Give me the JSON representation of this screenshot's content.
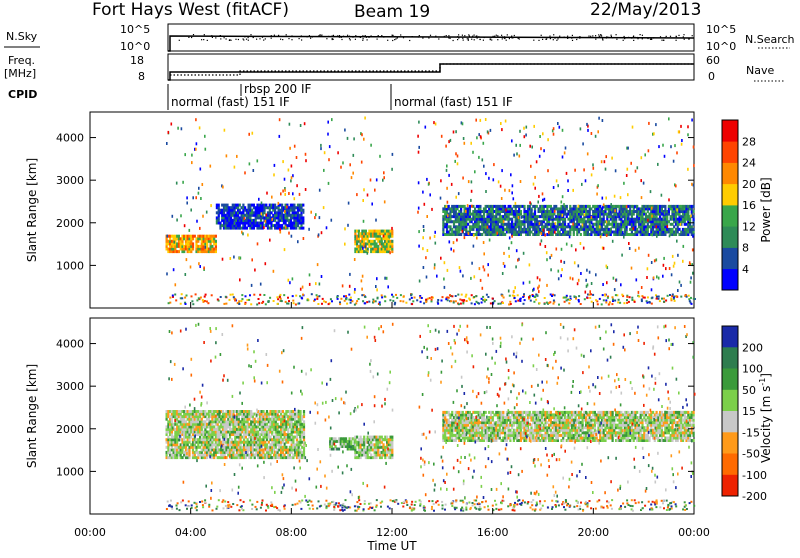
{
  "header": {
    "station": "Fort Hays West (fitACF)",
    "beam": "Beam 19",
    "date": "22/May/2013"
  },
  "strips": {
    "nsky_label": "N.Sky",
    "nsky_ticks": [
      "10^5",
      "10^0"
    ],
    "nsearch_label": "N.Search",
    "nsearch_ticks": [
      "10^5",
      "10^0"
    ],
    "freq_label": "Freq.",
    "freq_unit": "[MHz]",
    "freq_ticks": [
      "18",
      "8"
    ],
    "nave_label": "Nave",
    "nave_ticks": [
      "60",
      "0"
    ],
    "cpid_label": "CPID",
    "cpid_entries": [
      {
        "label": "normal (fast) 151 IF",
        "start_hour": 3.0
      },
      {
        "label": "rbsp 200 IF",
        "start_hour": 6.0
      },
      {
        "label": "normal (fast) 151 IF",
        "start_hour": 12.0
      }
    ]
  },
  "chart_data": [
    {
      "type": "heatmap",
      "name": "power",
      "ylabel": "Slant Range [km]",
      "yticks": [
        "1000",
        "2000",
        "3000",
        "4000"
      ],
      "ylim": [
        0,
        4600
      ],
      "xlim": [
        0,
        24
      ],
      "colorbar_label": "Power [dB]",
      "colorbar_ticks": [
        "4",
        "8",
        "12",
        "16",
        "20",
        "24",
        "28"
      ],
      "colors": [
        "#0000ff",
        "#1a4aa0",
        "#2e8b57",
        "#39a64a",
        "#ffcc00",
        "#ff8800",
        "#ff4400",
        "#ee0000"
      ],
      "bands": [
        {
          "t0": 3.0,
          "t1": 5.0,
          "r0": 1300,
          "r1": 1700,
          "level": 5
        },
        {
          "t0": 5.0,
          "t1": 8.5,
          "r0": 1850,
          "r1": 2400,
          "level": 1
        },
        {
          "t0": 10.5,
          "t1": 12.0,
          "r0": 1300,
          "r1": 1800,
          "level": 4
        },
        {
          "t0": 14.0,
          "t1": 24.0,
          "r0": 1700,
          "r1": 2400,
          "level": 2
        }
      ]
    },
    {
      "type": "heatmap",
      "name": "velocity",
      "ylabel": "Slant Range [km]",
      "yticks": [
        "1000",
        "2000",
        "3000",
        "4000"
      ],
      "ylim": [
        0,
        4600
      ],
      "xlim": [
        0,
        24
      ],
      "colorbar_label": "Velocity [m s",
      "colorbar_label_sup": "-1",
      "colorbar_ticks": [
        "200",
        "100",
        "50",
        "15",
        "-15",
        "-50",
        "-100",
        "-200"
      ],
      "colors": [
        "#1a2aa8",
        "#2e7d4f",
        "#3a9a3a",
        "#7cd04a",
        "#c8c8c8",
        "#ff9a1a",
        "#ff6a00",
        "#ee2200"
      ],
      "bands": [
        {
          "t0": 3.0,
          "t1": 8.5,
          "r0": 1300,
          "r1": 2400,
          "level": 4
        },
        {
          "t0": 9.5,
          "t1": 10.5,
          "r0": 1500,
          "r1": 1800,
          "level": 3
        },
        {
          "t0": 10.5,
          "t1": 12.0,
          "r0": 1300,
          "r1": 1800,
          "level": 4
        },
        {
          "t0": 14.0,
          "t1": 24.0,
          "r0": 1700,
          "r1": 2400,
          "level": 4
        }
      ]
    }
  ],
  "xaxis": {
    "ticks": [
      "00:00",
      "04:00",
      "08:00",
      "12:00",
      "16:00",
      "20:00",
      "00:00"
    ],
    "label": "Time UT"
  }
}
